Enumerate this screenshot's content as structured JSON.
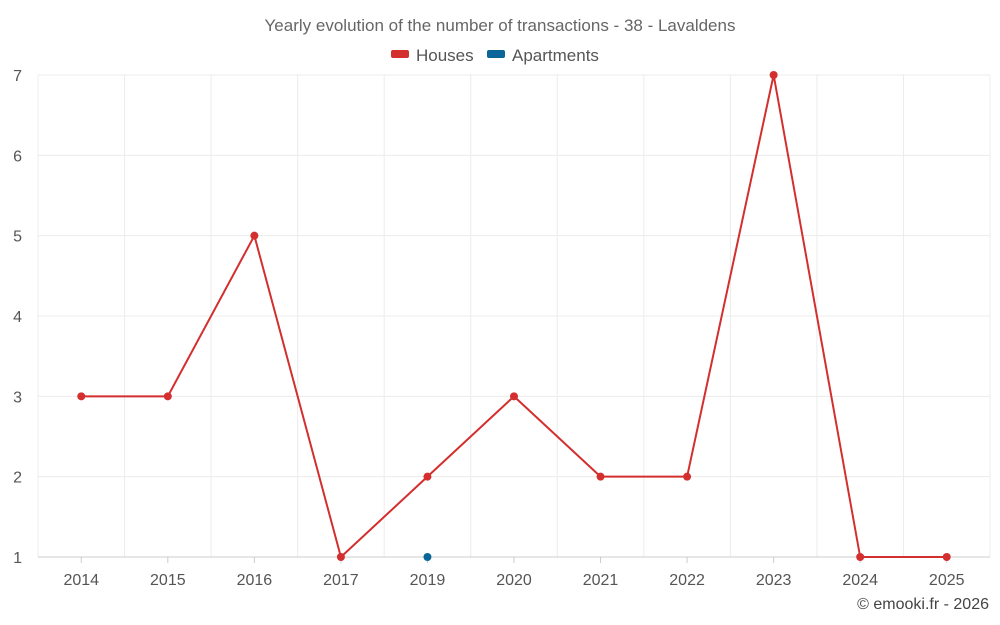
{
  "chart_data": {
    "type": "line",
    "title": "Yearly evolution of the number of transactions - 38 - Lavaldens",
    "categories": [
      "2014",
      "2015",
      "2016",
      "2017",
      "2019",
      "2020",
      "2021",
      "2022",
      "2023",
      "2024",
      "2025"
    ],
    "series": [
      {
        "name": "Houses",
        "color": "#d32f2f",
        "values": [
          3,
          3,
          5,
          1,
          2,
          3,
          2,
          2,
          7,
          1,
          1
        ]
      },
      {
        "name": "Apartments",
        "color": "#0a6699",
        "values": [
          null,
          null,
          null,
          null,
          1,
          null,
          null,
          null,
          null,
          null,
          null
        ]
      }
    ],
    "y_ticks": [
      "1",
      "2",
      "3",
      "4",
      "5",
      "6",
      "7"
    ],
    "ylim": [
      1,
      7
    ],
    "grid": true,
    "legend_position": "top-center",
    "credit": "© emooki.fr - 2026"
  }
}
